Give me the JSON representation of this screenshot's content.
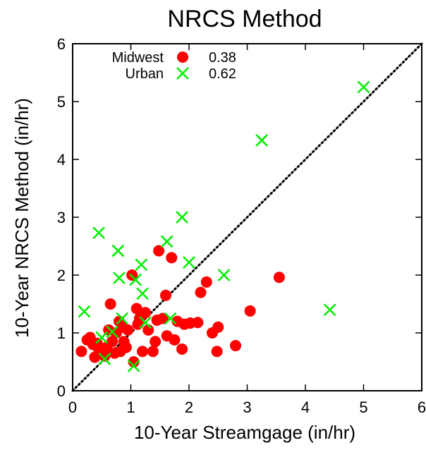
{
  "chart_data": {
    "type": "scatter",
    "title": "NRCS Method",
    "xlabel": "10-Year Streamgage (in/hr)",
    "ylabel": "10-Year NRCS Method (in/hr)",
    "xlim": [
      0,
      6
    ],
    "ylim": [
      0,
      6
    ],
    "xticks": [
      "0",
      "1",
      "2",
      "3",
      "4",
      "5",
      "6"
    ],
    "yticks": [
      "0",
      "1",
      "2",
      "3",
      "4",
      "5",
      "6"
    ],
    "grid": false,
    "legend_position": "top-left",
    "reference_line": {
      "style": "dotted",
      "from": [
        0,
        0
      ],
      "to": [
        6,
        6
      ],
      "color": "#000000"
    },
    "series": [
      {
        "name": "Midwest",
        "value_label": "0.38",
        "marker": "circle",
        "color": "#ff0000",
        "points": [
          [
            0.15,
            0.68
          ],
          [
            0.25,
            0.88
          ],
          [
            0.3,
            0.92
          ],
          [
            0.35,
            0.8
          ],
          [
            0.38,
            0.58
          ],
          [
            0.42,
            0.82
          ],
          [
            0.45,
            0.72
          ],
          [
            0.55,
            0.6
          ],
          [
            0.58,
            0.75
          ],
          [
            0.62,
            1.05
          ],
          [
            0.65,
            1.5
          ],
          [
            0.68,
            0.85
          ],
          [
            0.72,
            0.65
          ],
          [
            0.75,
            1.0
          ],
          [
            0.8,
            1.2
          ],
          [
            0.82,
            0.68
          ],
          [
            0.85,
            1.1
          ],
          [
            0.88,
            0.85
          ],
          [
            0.92,
            0.75
          ],
          [
            0.95,
            1.05
          ],
          [
            1.02,
            2.0
          ],
          [
            1.05,
            0.5
          ],
          [
            1.1,
            1.42
          ],
          [
            1.12,
            1.15
          ],
          [
            1.15,
            1.25
          ],
          [
            1.2,
            0.68
          ],
          [
            1.25,
            1.35
          ],
          [
            1.3,
            1.05
          ],
          [
            1.38,
            0.68
          ],
          [
            1.42,
            0.85
          ],
          [
            1.45,
            1.22
          ],
          [
            1.48,
            2.42
          ],
          [
            1.55,
            1.25
          ],
          [
            1.6,
            1.65
          ],
          [
            1.62,
            0.95
          ],
          [
            1.7,
            2.3
          ],
          [
            1.75,
            0.88
          ],
          [
            1.8,
            1.2
          ],
          [
            1.88,
            0.72
          ],
          [
            1.92,
            1.15
          ],
          [
            2.02,
            1.17
          ],
          [
            2.15,
            1.18
          ],
          [
            2.2,
            1.7
          ],
          [
            2.3,
            1.88
          ],
          [
            2.4,
            1.0
          ],
          [
            2.48,
            0.68
          ],
          [
            2.5,
            1.1
          ],
          [
            2.8,
            0.78
          ],
          [
            3.05,
            1.38
          ],
          [
            3.55,
            1.96
          ]
        ]
      },
      {
        "name": "Urban",
        "value_label": "0.62",
        "marker": "x",
        "color": "#00ee00",
        "points": [
          [
            0.2,
            1.37
          ],
          [
            0.45,
            2.73
          ],
          [
            0.5,
            0.92
          ],
          [
            0.55,
            0.55
          ],
          [
            0.68,
            1.02
          ],
          [
            0.78,
            2.42
          ],
          [
            0.8,
            1.95
          ],
          [
            0.85,
            1.25
          ],
          [
            1.05,
            0.43
          ],
          [
            1.08,
            1.92
          ],
          [
            1.18,
            2.18
          ],
          [
            1.2,
            1.68
          ],
          [
            1.25,
            1.18
          ],
          [
            1.62,
            2.58
          ],
          [
            1.68,
            1.25
          ],
          [
            1.88,
            3.0
          ],
          [
            2.0,
            2.22
          ],
          [
            2.6,
            2.0
          ],
          [
            3.25,
            4.33
          ],
          [
            4.42,
            1.4
          ],
          [
            5.0,
            5.25
          ]
        ]
      }
    ]
  }
}
